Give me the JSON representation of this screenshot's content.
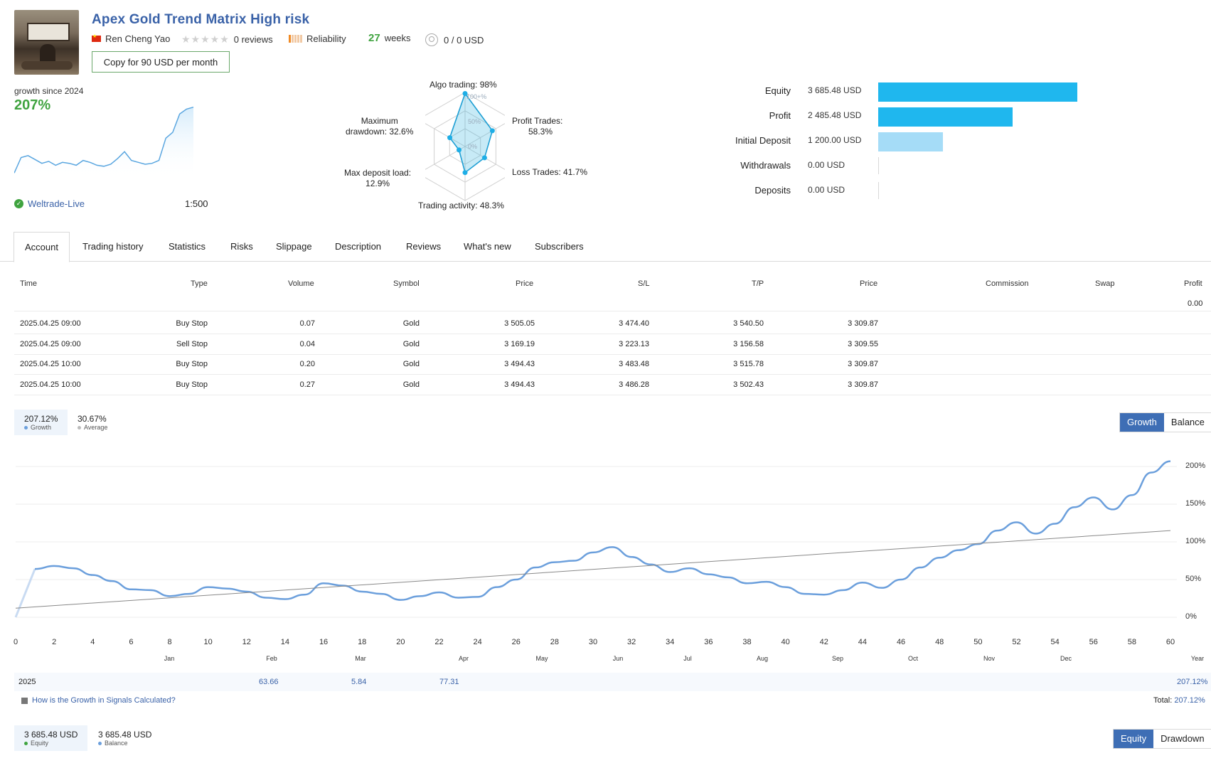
{
  "header": {
    "title": "Apex Gold Trend Matrix High risk",
    "author": "Ren Cheng Yao",
    "reviews": "0 reviews",
    "reliability": "Reliability",
    "weeks_num": "27",
    "weeks_label": "weeks",
    "subscribers": "0 / 0 USD",
    "copy_label": "Copy for 90 USD per month"
  },
  "summary": {
    "growth_label": "growth since 2024",
    "growth_value": "207%",
    "broker": "Weltrade-Live",
    "leverage": "1:500",
    "sparkline": [
      2,
      18,
      20,
      16,
      12,
      14,
      10,
      13,
      12,
      10,
      15,
      13,
      10,
      9,
      11,
      17,
      24,
      15,
      13,
      11,
      12,
      15,
      38,
      44,
      63,
      68,
      70
    ]
  },
  "radar": {
    "algo": "Algo trading: 98%",
    "profit": "Profit Trades:",
    "profit_val": "58.3%",
    "loss": "Loss Trades: 41.7%",
    "activity": "Trading activity: 48.3%",
    "load": "Max deposit load:",
    "load_val": "12.9%",
    "drawdown": "Maximum",
    "drawdown_val": "drawdown: 32.6%",
    "ring100": "100+%",
    "ring50": "50%",
    "ring0": "0%",
    "values": [
      98,
      58.3,
      41.7,
      48.3,
      12.9,
      32.6
    ]
  },
  "financials": {
    "items": [
      {
        "label": "Equity",
        "value": "3 685.48 USD",
        "amount": 3685.48,
        "color": "#1fb7ee"
      },
      {
        "label": "Profit",
        "value": "2 485.48 USD",
        "amount": 2485.48,
        "color": "#1fb7ee"
      },
      {
        "label": "Initial Deposit",
        "value": "1 200.00 USD",
        "amount": 1200.0,
        "color": "#a5dcf7"
      },
      {
        "label": "Withdrawals",
        "value": "0.00 USD",
        "amount": 0,
        "color": "#a5dcf7"
      },
      {
        "label": "Deposits",
        "value": "0.00 USD",
        "amount": 0,
        "color": "#a5dcf7"
      }
    ]
  },
  "tabs": [
    "Account",
    "Trading history",
    "Statistics",
    "Risks",
    "Slippage",
    "Description",
    "Reviews",
    "What's new",
    "Subscribers"
  ],
  "orders": {
    "headers": [
      "Time",
      "Type",
      "Volume",
      "Symbol",
      "Price",
      "S/L",
      "T/P",
      "Price",
      "Commission",
      "Swap",
      "Profit"
    ],
    "total_profit": "0.00",
    "rows": [
      [
        "2025.04.25 09:00",
        "Buy Stop",
        "0.07",
        "Gold",
        "3 505.05",
        "3 474.40",
        "3 540.50",
        "3 309.87"
      ],
      [
        "2025.04.25 09:00",
        "Sell Stop",
        "0.04",
        "Gold",
        "3 169.19",
        "3 223.13",
        "3 156.58",
        "3 309.55"
      ],
      [
        "2025.04.25 10:00",
        "Buy Stop",
        "0.20",
        "Gold",
        "3 494.43",
        "3 483.48",
        "3 515.78",
        "3 309.87"
      ],
      [
        "2025.04.25 10:00",
        "Buy Stop",
        "0.27",
        "Gold",
        "3 494.43",
        "3 486.28",
        "3 502.43",
        "3 309.87"
      ]
    ]
  },
  "growth_legend": {
    "growth_val": "207.12%",
    "growth_lbl": "Growth",
    "avg_val": "30.67%",
    "avg_lbl": "Average",
    "toggle_on": "Growth",
    "toggle_off": "Balance"
  },
  "chart_data": {
    "type": "line",
    "x_ticks": [
      "0",
      "2",
      "4",
      "6",
      "8",
      "10",
      "12",
      "14",
      "16",
      "18",
      "20",
      "22",
      "24",
      "26",
      "28",
      "30",
      "32",
      "34",
      "36",
      "38",
      "40",
      "42",
      "44",
      "46",
      "48",
      "50",
      "52",
      "54",
      "56",
      "58",
      "60"
    ],
    "y_ticks": [
      "200%",
      "150%",
      "100%",
      "50%",
      "0%"
    ],
    "ylim": [
      0,
      200
    ],
    "xlim": [
      0,
      60
    ],
    "months": [
      "Jan",
      "Feb",
      "Mar",
      "Apr",
      "May",
      "Jun",
      "Jul",
      "Aug",
      "Sep",
      "Oct",
      "Nov",
      "Dec",
      "Year"
    ],
    "series": [
      {
        "name": "Growth",
        "color": "#6b9fdc",
        "points": [
          [
            0,
            0
          ],
          [
            1,
            64
          ],
          [
            2,
            68
          ],
          [
            3,
            65
          ],
          [
            4,
            56
          ],
          [
            5,
            48
          ],
          [
            6,
            37
          ],
          [
            7,
            36
          ],
          [
            8,
            28
          ],
          [
            9,
            31
          ],
          [
            10,
            40
          ],
          [
            11,
            38
          ],
          [
            12,
            34
          ],
          [
            13,
            26
          ],
          [
            14,
            24
          ],
          [
            15,
            30
          ],
          [
            16,
            45
          ],
          [
            17,
            42
          ],
          [
            18,
            34
          ],
          [
            19,
            31
          ],
          [
            20,
            23
          ],
          [
            21,
            28
          ],
          [
            22,
            33
          ],
          [
            23,
            26
          ],
          [
            24,
            27
          ],
          [
            25,
            40
          ],
          [
            26,
            50
          ],
          [
            27,
            66
          ],
          [
            28,
            73
          ],
          [
            29,
            75
          ],
          [
            30,
            86
          ],
          [
            31,
            93
          ],
          [
            32,
            80
          ],
          [
            33,
            70
          ],
          [
            34,
            60
          ],
          [
            35,
            65
          ],
          [
            36,
            57
          ],
          [
            37,
            53
          ],
          [
            38,
            45
          ],
          [
            39,
            47
          ],
          [
            40,
            40
          ],
          [
            41,
            31
          ],
          [
            42,
            30
          ],
          [
            43,
            36
          ],
          [
            44,
            46
          ],
          [
            45,
            39
          ],
          [
            46,
            50
          ],
          [
            47,
            66
          ],
          [
            48,
            79
          ],
          [
            49,
            89
          ],
          [
            50,
            97
          ],
          [
            51,
            115
          ],
          [
            52,
            126
          ],
          [
            53,
            111
          ],
          [
            54,
            124
          ],
          [
            55,
            146
          ],
          [
            56,
            159
          ],
          [
            57,
            143
          ],
          [
            58,
            162
          ],
          [
            59,
            192
          ],
          [
            60,
            207
          ]
        ]
      },
      {
        "name": "Average",
        "color": "#888888",
        "points": [
          [
            0,
            12
          ],
          [
            60,
            115
          ]
        ]
      }
    ]
  },
  "year_row": {
    "year": "2025",
    "feb": "63.66",
    "mar": "5.84",
    "apr": "77.31",
    "total_year": "207.12%"
  },
  "help": "How is the Growth in Signals Calculated?",
  "total_label": "Total:",
  "total_value": "207.12%",
  "equity_legend": {
    "eq_val": "3 685.48 USD",
    "eq_lbl": "Equity",
    "bal_val": "3 685.48 USD",
    "bal_lbl": "Balance",
    "toggle_on": "Equity",
    "toggle_off": "Drawdown"
  }
}
